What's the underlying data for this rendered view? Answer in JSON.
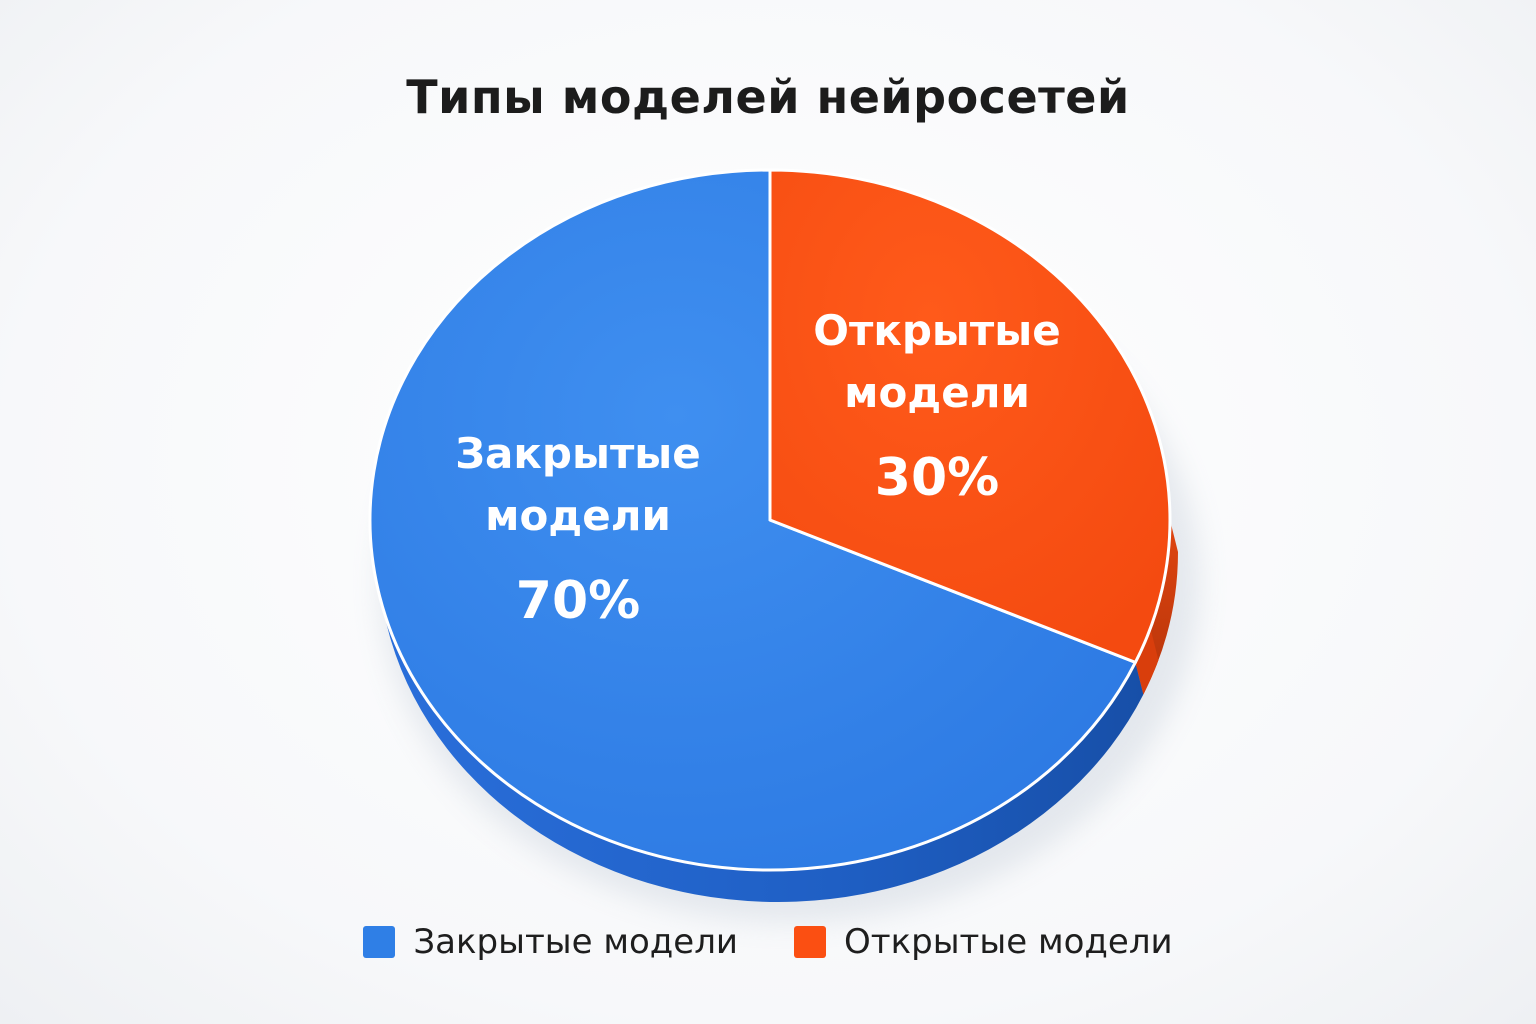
{
  "chart_data": {
    "type": "pie",
    "title": "Типы моделей нейросетей",
    "categories": [
      "Закрытые модели",
      "Открытые модели"
    ],
    "values": [
      70,
      30
    ],
    "unit": "%",
    "slice_labels": [
      {
        "line1": "Закрытые",
        "line2": "модели",
        "value_label": "70%"
      },
      {
        "line1": "Открытые",
        "line2": "модели",
        "value_label": "30%"
      }
    ],
    "colors": [
      "#2f7fe6",
      "#fb4f12"
    ],
    "side_colors": [
      "#1f5fc4",
      "#c73a0c"
    ],
    "legend": {
      "position": "bottom",
      "items": [
        "Закрытые модели",
        "Открытые модели"
      ]
    },
    "style": "3d"
  }
}
